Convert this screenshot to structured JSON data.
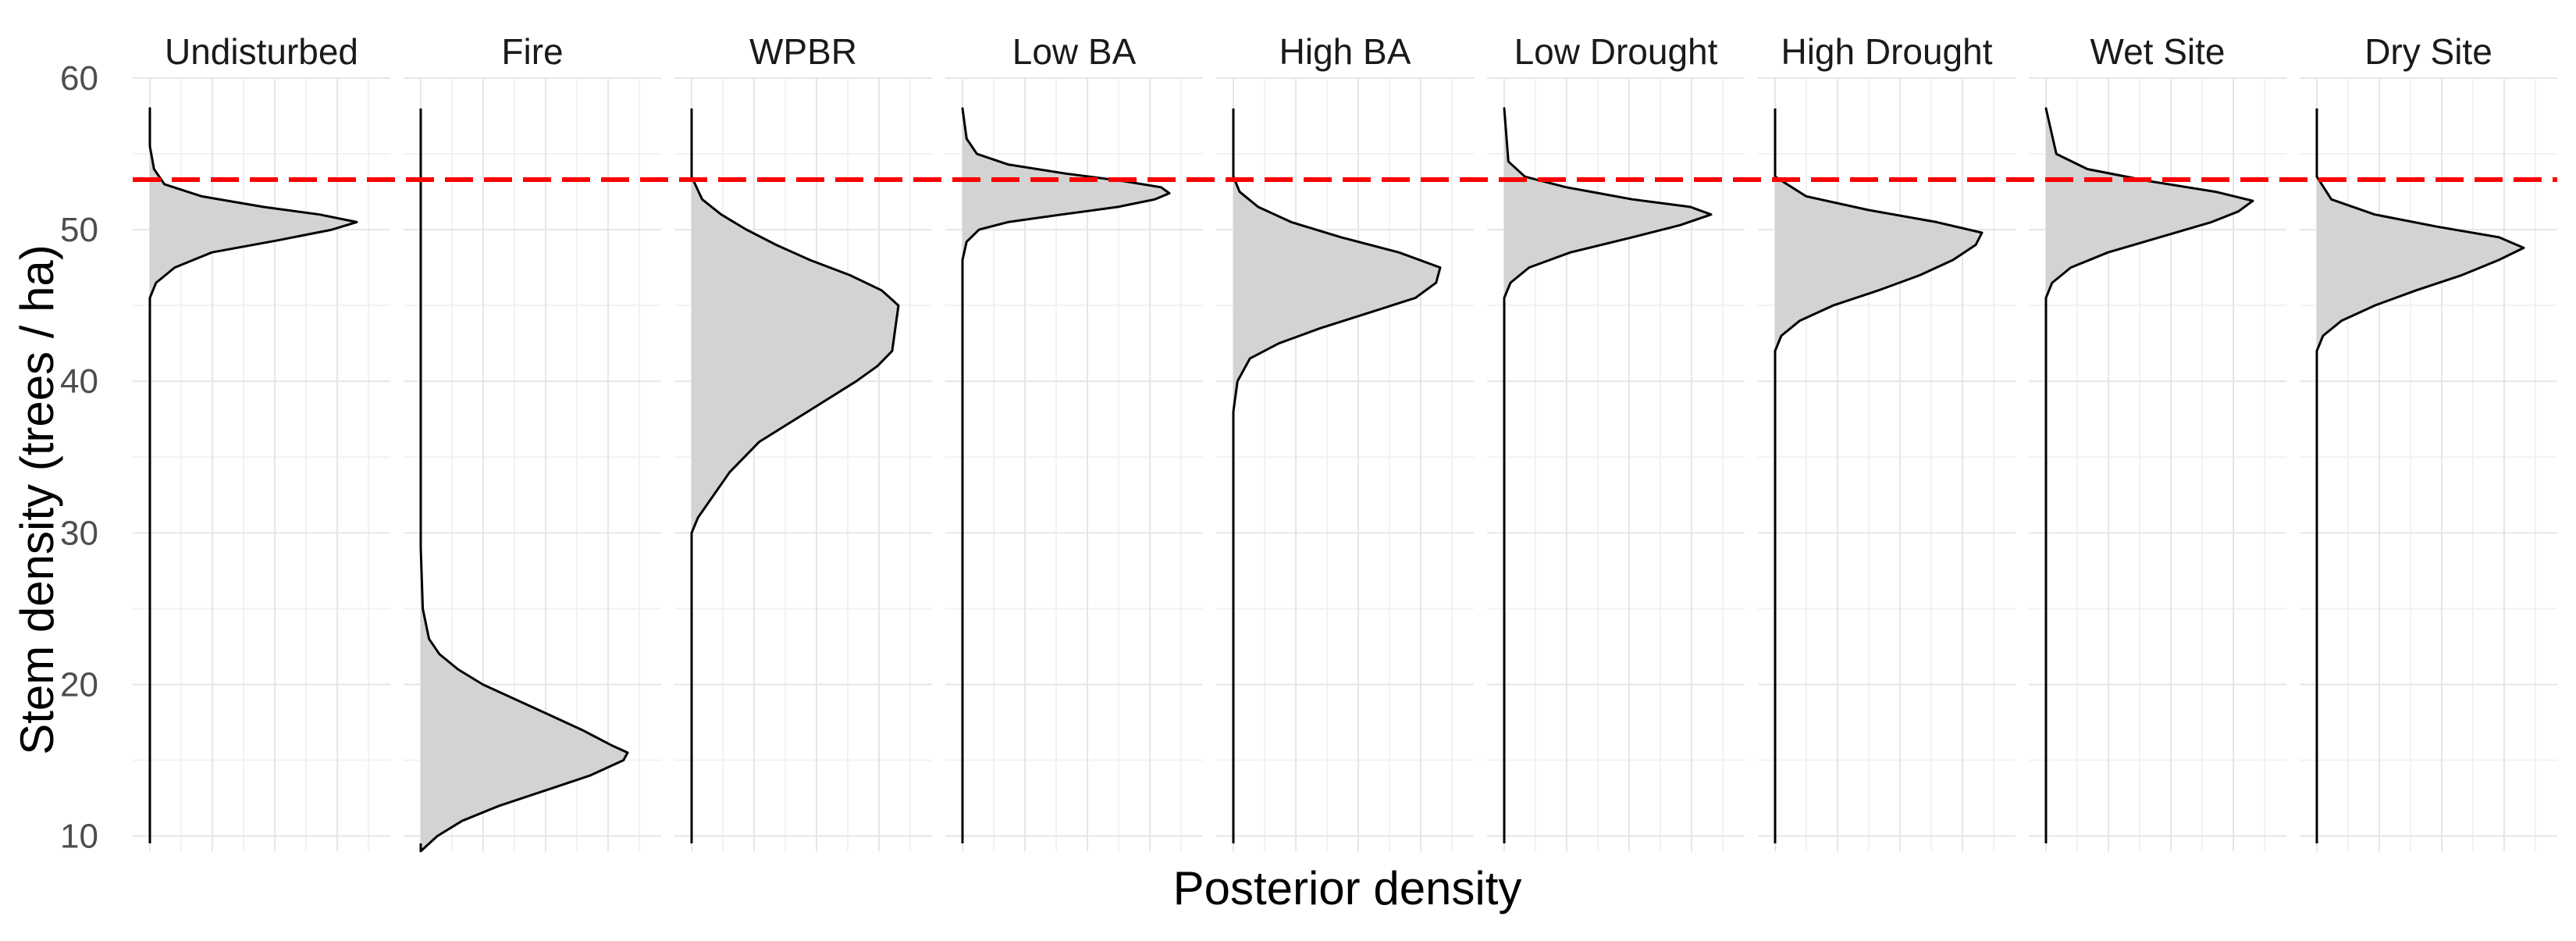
{
  "chart_data": {
    "type": "area",
    "xlabel": "Posterior density",
    "ylabel": "Stem density (trees / ha)",
    "ylim": [
      9,
      60
    ],
    "yticks": [
      10,
      20,
      30,
      40,
      50,
      60
    ],
    "grid": true,
    "reference_line": {
      "y": 53.3,
      "color": "#ff0000",
      "style": "dashed"
    },
    "fill_color": "#d3d3d3",
    "line_color": "#000000",
    "panels": [
      {
        "name": "Undisturbed",
        "y": [
          45.5,
          46.5,
          47.5,
          48.5,
          49.3,
          50.0,
          50.5,
          51.0,
          51.5,
          52.2,
          53.0,
          54.0,
          55.5,
          58
        ],
        "density": [
          0,
          0.03,
          0.12,
          0.3,
          0.62,
          0.88,
          1.0,
          0.82,
          0.55,
          0.25,
          0.07,
          0.02,
          0,
          0
        ]
      },
      {
        "name": "Fire",
        "y": [
          9,
          10,
          11,
          12,
          13,
          14,
          15,
          15.5,
          16,
          17,
          18,
          19,
          20,
          21,
          22,
          23,
          25,
          29
        ],
        "density": [
          0,
          0.08,
          0.2,
          0.38,
          0.6,
          0.82,
          0.98,
          1.0,
          0.92,
          0.78,
          0.62,
          0.46,
          0.3,
          0.18,
          0.09,
          0.04,
          0.01,
          0
        ]
      },
      {
        "name": "WPBR",
        "y": [
          30,
          31,
          32,
          34,
          36,
          38,
          40,
          41,
          42,
          43,
          44,
          45,
          46,
          47,
          48,
          49,
          50,
          51,
          52,
          53.5
        ],
        "density": [
          0,
          0.03,
          0.08,
          0.18,
          0.32,
          0.55,
          0.78,
          0.88,
          0.95,
          0.96,
          0.97,
          0.98,
          0.9,
          0.75,
          0.56,
          0.4,
          0.26,
          0.14,
          0.05,
          0
        ]
      },
      {
        "name": "Low BA",
        "y": [
          48,
          49.2,
          50,
          50.5,
          51.0,
          51.5,
          52.0,
          52.4,
          52.8,
          53.2,
          53.7,
          54.3,
          55,
          56,
          58
        ],
        "density": [
          0,
          0.02,
          0.08,
          0.22,
          0.48,
          0.75,
          0.93,
          1.0,
          0.96,
          0.78,
          0.5,
          0.22,
          0.07,
          0.02,
          0
        ]
      },
      {
        "name": "High BA",
        "y": [
          38,
          40,
          41.5,
          42.5,
          43.5,
          44.5,
          45.5,
          46.5,
          47.5,
          48.5,
          49.5,
          50.5,
          51.5,
          52.5,
          53.5
        ],
        "density": [
          0,
          0.02,
          0.08,
          0.22,
          0.42,
          0.65,
          0.88,
          0.98,
          1.0,
          0.8,
          0.52,
          0.28,
          0.12,
          0.03,
          0
        ]
      },
      {
        "name": "Low Drought",
        "y": [
          45.5,
          46.5,
          47.5,
          48.5,
          49.5,
          50.3,
          51.0,
          51.5,
          52.0,
          52.8,
          53.5,
          54.5,
          58
        ],
        "density": [
          0,
          0.03,
          0.12,
          0.32,
          0.62,
          0.85,
          1.0,
          0.9,
          0.62,
          0.3,
          0.1,
          0.02,
          0
        ]
      },
      {
        "name": "High Drought",
        "y": [
          42,
          43,
          44,
          45,
          46,
          47,
          48,
          49,
          49.8,
          50.5,
          51.3,
          52.2,
          53.5
        ],
        "density": [
          0,
          0.03,
          0.12,
          0.28,
          0.5,
          0.7,
          0.86,
          0.97,
          1.0,
          0.78,
          0.45,
          0.15,
          0
        ]
      },
      {
        "name": "Wet Site",
        "y": [
          45.5,
          46.5,
          47.5,
          48.5,
          49.5,
          50.5,
          51.2,
          51.9,
          52.5,
          53.2,
          54.0,
          55,
          58
        ],
        "density": [
          0,
          0.03,
          0.12,
          0.3,
          0.55,
          0.8,
          0.93,
          1.0,
          0.82,
          0.5,
          0.2,
          0.05,
          0
        ]
      },
      {
        "name": "Dry Site",
        "y": [
          42,
          43,
          44,
          45,
          46,
          47,
          48,
          48.8,
          49.5,
          50.2,
          51,
          52,
          53.5
        ],
        "density": [
          0,
          0.03,
          0.12,
          0.28,
          0.48,
          0.7,
          0.88,
          1.0,
          0.88,
          0.58,
          0.28,
          0.07,
          0
        ]
      }
    ]
  }
}
